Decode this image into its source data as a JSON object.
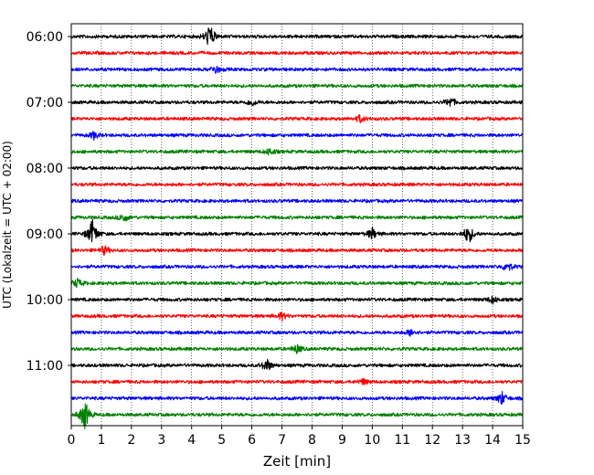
{
  "chart_data": {
    "type": "line",
    "subtype": "helicorder-seismogram",
    "title": "",
    "xlabel": "Zeit  [min]",
    "ylabel": "UTC (Lokalzeit = UTC + 02:00)",
    "xlim": [
      0,
      15
    ],
    "x_ticks": [
      "0",
      "1",
      "2",
      "3",
      "4",
      "5",
      "6",
      "7",
      "8",
      "9",
      "10",
      "11",
      "12",
      "13",
      "14",
      "15"
    ],
    "y_tick_labels": [
      "06:00",
      "07:00",
      "08:00",
      "09:00",
      "10:00",
      "11:00"
    ],
    "grid": "vertical dotted",
    "line_colors": [
      "#000000",
      "#ff0000",
      "#0000ff",
      "#008000"
    ],
    "trace_start_times": [
      "06:00",
      "06:15",
      "06:30",
      "06:45",
      "07:00",
      "07:15",
      "07:30",
      "07:45",
      "08:00",
      "08:15",
      "08:30",
      "08:45",
      "09:00",
      "09:15",
      "09:30",
      "09:45",
      "10:00",
      "10:15",
      "10:30",
      "10:45",
      "11:00",
      "11:15",
      "11:30",
      "11:45"
    ],
    "traces_count": 24,
    "trace_minutes": 15,
    "bursts": [
      {
        "trace": 0,
        "minute": 4.6,
        "amplitude": 0.9
      },
      {
        "trace": 2,
        "minute": 4.8,
        "amplitude": 0.3
      },
      {
        "trace": 4,
        "minute": 6.0,
        "amplitude": 0.25
      },
      {
        "trace": 4,
        "minute": 12.6,
        "amplitude": 0.35
      },
      {
        "trace": 5,
        "minute": 9.6,
        "amplitude": 0.25
      },
      {
        "trace": 6,
        "minute": 0.75,
        "amplitude": 0.25
      },
      {
        "trace": 7,
        "minute": 6.6,
        "amplitude": 0.25
      },
      {
        "trace": 11,
        "minute": 1.75,
        "amplitude": 0.3
      },
      {
        "trace": 12,
        "minute": 0.7,
        "amplitude": 1.0
      },
      {
        "trace": 12,
        "minute": 10.0,
        "amplitude": 0.4
      },
      {
        "trace": 12,
        "minute": 13.2,
        "amplitude": 0.7
      },
      {
        "trace": 13,
        "minute": 1.1,
        "amplitude": 0.3
      },
      {
        "trace": 14,
        "minute": 14.5,
        "amplitude": 0.35
      },
      {
        "trace": 15,
        "minute": 0.2,
        "amplitude": 0.3
      },
      {
        "trace": 16,
        "minute": 14.0,
        "amplitude": 0.25
      },
      {
        "trace": 17,
        "minute": 7.0,
        "amplitude": 0.25
      },
      {
        "trace": 18,
        "minute": 11.3,
        "amplitude": 0.25
      },
      {
        "trace": 19,
        "minute": 7.5,
        "amplitude": 0.3
      },
      {
        "trace": 20,
        "minute": 6.5,
        "amplitude": 0.45
      },
      {
        "trace": 21,
        "minute": 9.7,
        "amplitude": 0.2
      },
      {
        "trace": 22,
        "minute": 14.3,
        "amplitude": 0.45
      },
      {
        "trace": 23,
        "minute": 0.45,
        "amplitude": 1.1
      }
    ]
  }
}
